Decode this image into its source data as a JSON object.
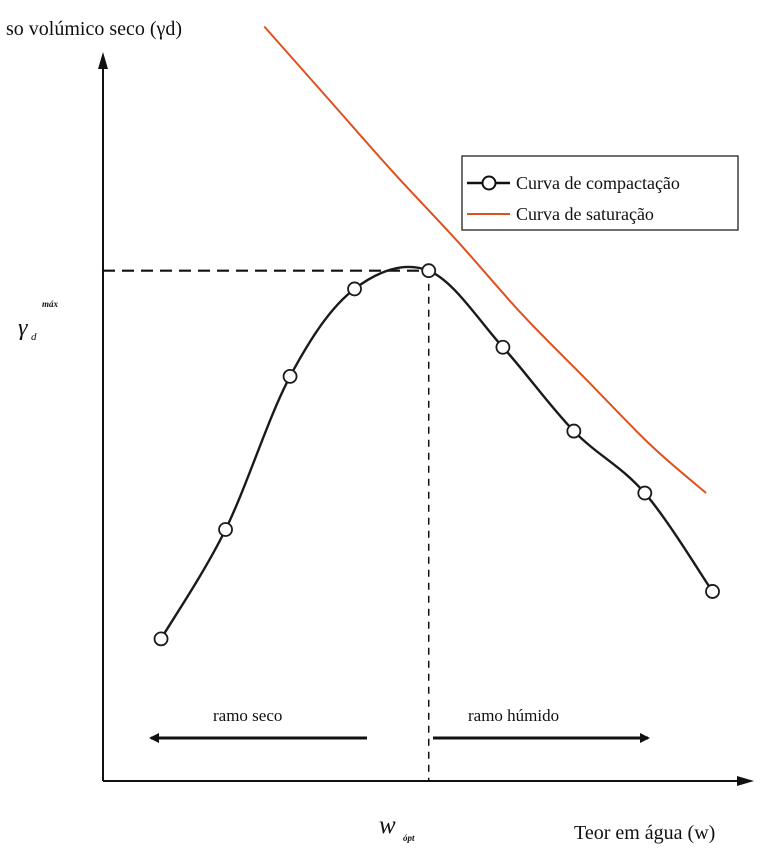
{
  "chart_data": {
    "type": "line",
    "ylabel": "so volúmico seco (γd)",
    "xlabel": "Teor em água (w)",
    "y_max_label": {
      "symbol": "γ",
      "subscript": "d",
      "superscript": "máx"
    },
    "x_opt_label": {
      "symbol": "w",
      "subscript": "ópt"
    },
    "legend": {
      "position": "top-right",
      "entries": [
        "Curva de compactação",
        "Curva de saturação"
      ]
    },
    "branch_labels": {
      "dry": "ramo seco",
      "wet": "ramo húmido"
    },
    "series": [
      {
        "name": "Curva de compactação",
        "color": "#1a1a1a",
        "marker": "open-circle",
        "points_w": [
          0.09,
          0.19,
          0.29,
          0.39,
          0.505,
          0.62,
          0.73,
          0.84,
          0.945
        ],
        "points_y": [
          0.195,
          0.345,
          0.555,
          0.675,
          0.7,
          0.595,
          0.48,
          0.395,
          0.26
        ]
      },
      {
        "name": "Curva de saturação",
        "color": "#e0501e",
        "marker": "none",
        "points_w": [
          0.25,
          0.35,
          0.45,
          0.55,
          0.65,
          0.75,
          0.85,
          0.935
        ],
        "points_y": [
          1.035,
          0.935,
          0.835,
          0.74,
          0.64,
          0.55,
          0.46,
          0.395
        ]
      }
    ],
    "axes": {
      "x_range": [
        0,
        1
      ],
      "y_range": [
        0,
        1
      ],
      "ticks": "none",
      "grid": false
    }
  }
}
